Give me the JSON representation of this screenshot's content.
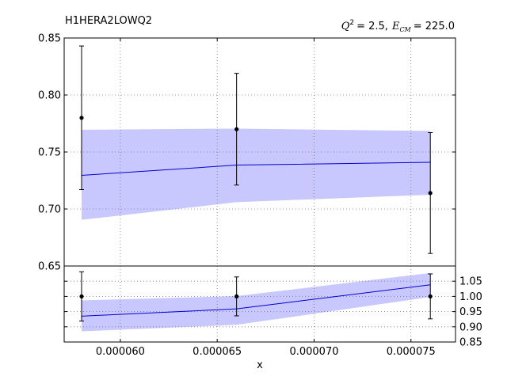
{
  "chart_data": {
    "type": "line",
    "dataset": "H1HERA2LOWQ2",
    "kinematics": {
      "q2_symbol": "Q",
      "q2_power": "2",
      "q2_value": "= 2.5,",
      "ecm_symbol": "E",
      "ecm_sub": "CM",
      "ecm_value": "= 225.0"
    },
    "xlabel": "x",
    "xlim": [
      5.71e-05,
      7.73e-05
    ],
    "x_ticks": [
      {
        "value": 6e-05,
        "label": "0.000060"
      },
      {
        "value": 6.5e-05,
        "label": "0.000065"
      },
      {
        "value": 7e-05,
        "label": "0.000070"
      },
      {
        "value": 7.5e-05,
        "label": "0.000075"
      }
    ],
    "top_panel": {
      "ylim": [
        0.65,
        0.85
      ],
      "y_ticks": [
        {
          "value": 0.65,
          "label": "0.65"
        },
        {
          "value": 0.7,
          "label": "0.70"
        },
        {
          "value": 0.75,
          "label": "0.75"
        },
        {
          "value": 0.8,
          "label": "0.80"
        },
        {
          "value": 0.85,
          "label": "0.85"
        }
      ],
      "theory": {
        "x": [
          5.8e-05,
          6.6e-05,
          7.6e-05
        ],
        "central": [
          0.7295,
          0.7385,
          0.741
        ],
        "upper": [
          0.7695,
          0.7705,
          0.7685
        ],
        "lower": [
          0.6905,
          0.706,
          0.7125
        ]
      },
      "data_points": [
        {
          "x": 5.8e-05,
          "y": 0.78,
          "err_up": 0.843,
          "err_down": 0.717
        },
        {
          "x": 6.6e-05,
          "y": 0.77,
          "err_up": 0.819,
          "err_down": 0.721
        },
        {
          "x": 7.6e-05,
          "y": 0.714,
          "err_up": 0.767,
          "err_down": 0.661
        }
      ]
    },
    "ratio_panel": {
      "ylim": [
        0.85,
        1.1
      ],
      "y_ticks": [
        {
          "value": 0.85,
          "label": "0.85"
        },
        {
          "value": 0.9,
          "label": "0.90"
        },
        {
          "value": 0.95,
          "label": "0.95"
        },
        {
          "value": 1.0,
          "label": "1.00"
        },
        {
          "value": 1.05,
          "label": "1.05"
        }
      ],
      "theory": {
        "x": [
          5.8e-05,
          6.6e-05,
          7.6e-05
        ],
        "central": [
          0.935,
          0.959,
          1.038
        ],
        "upper": [
          0.987,
          1.001,
          1.077
        ],
        "lower": [
          0.885,
          0.9065,
          0.998
        ]
      },
      "data_points": [
        {
          "x": 5.8e-05,
          "y": 1.0,
          "err_up": 1.081,
          "err_down": 0.919
        },
        {
          "x": 6.6e-05,
          "y": 1.0,
          "err_up": 1.064,
          "err_down": 0.936
        },
        {
          "x": 7.6e-05,
          "y": 1.0,
          "err_up": 1.074,
          "err_down": 0.926
        }
      ]
    },
    "colors": {
      "band": "#c8c8ff",
      "line": "#0000cc",
      "points": "#000000",
      "grid": "#777777"
    }
  }
}
